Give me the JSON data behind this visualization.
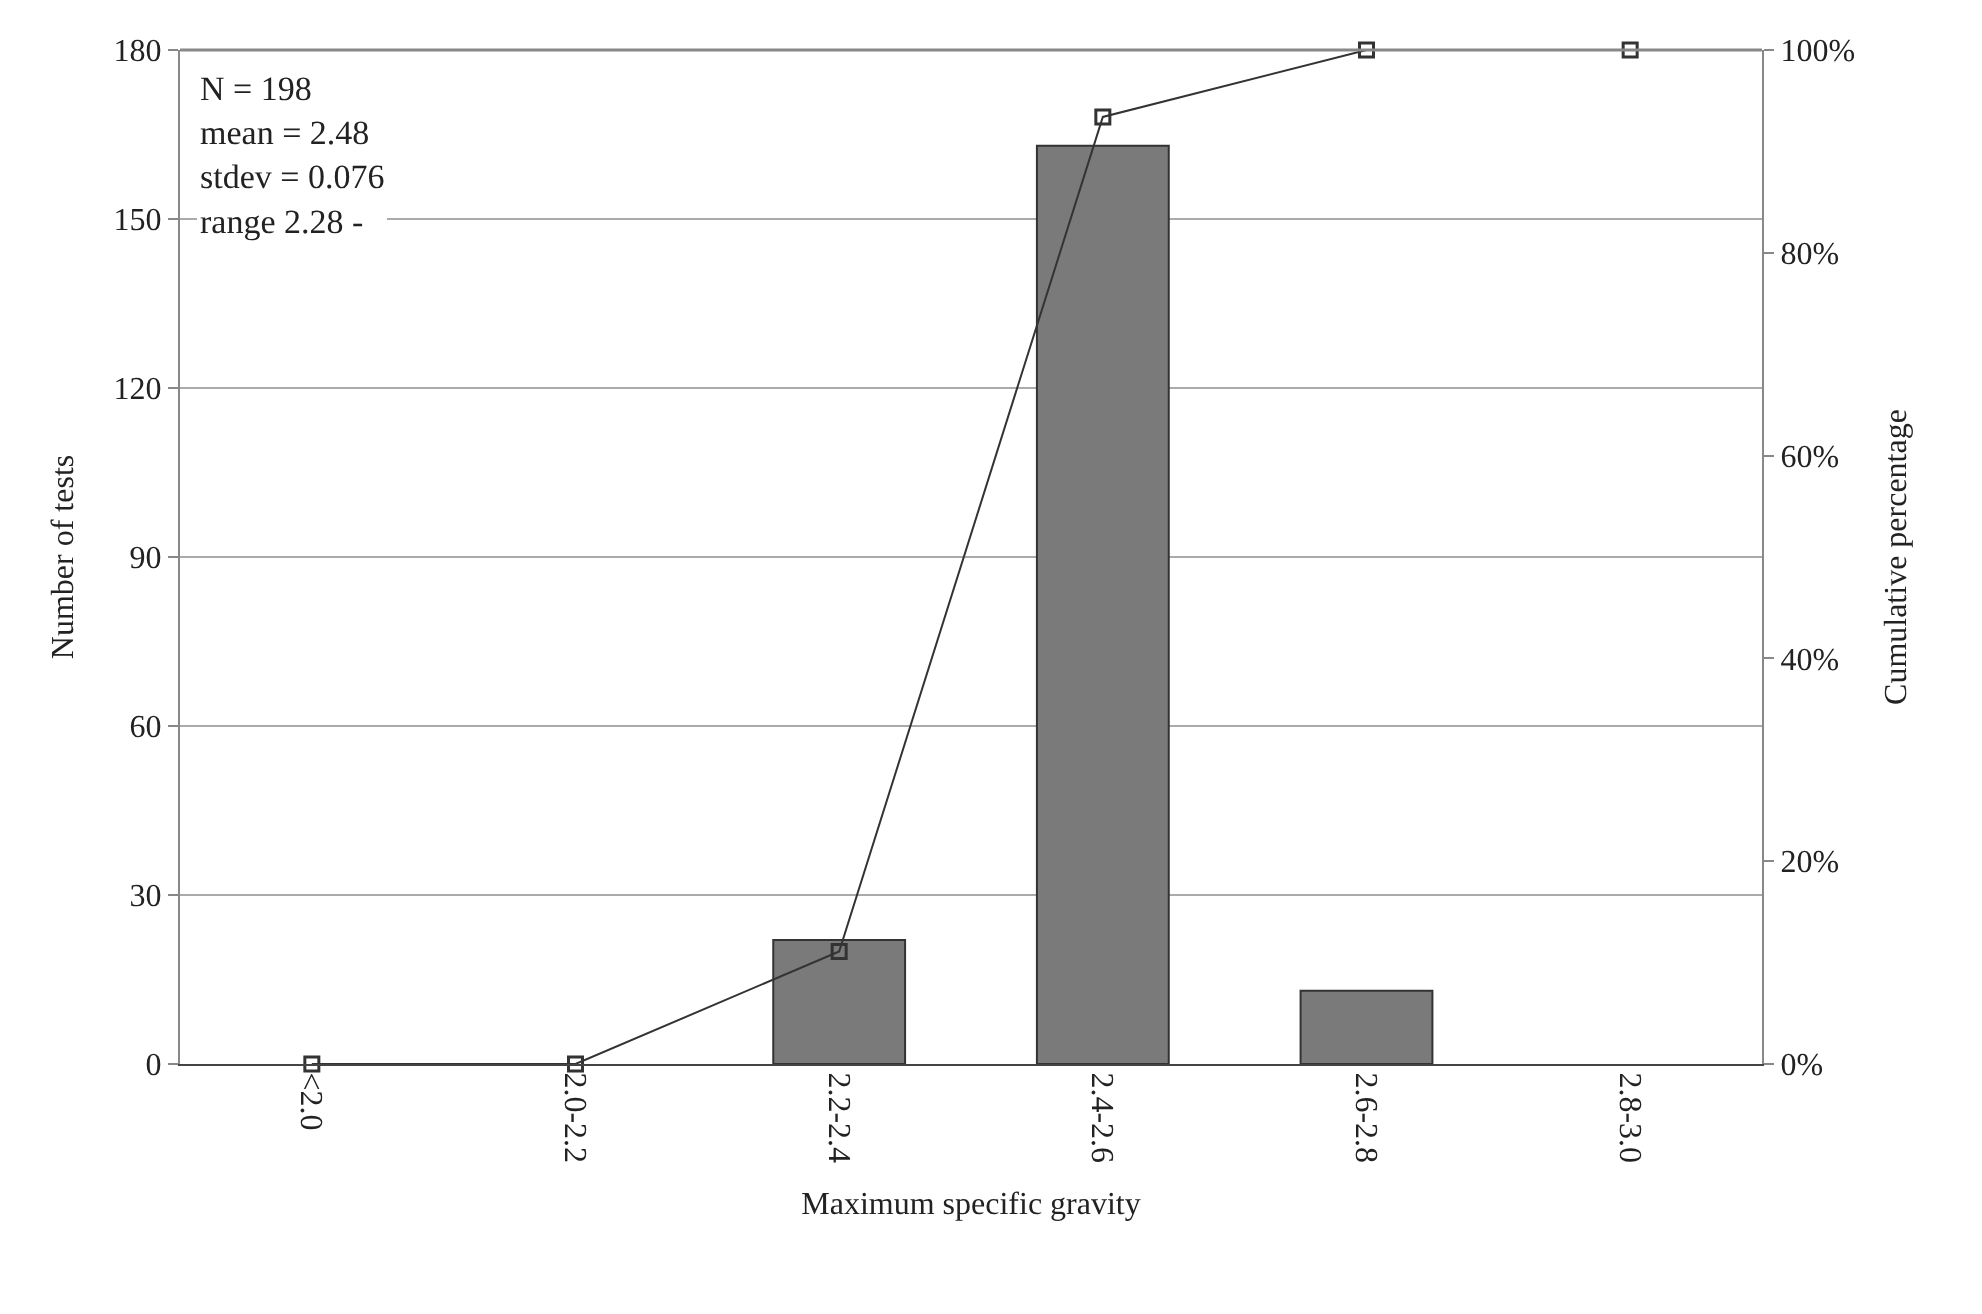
{
  "chart_data": {
    "type": "bar",
    "xlabel": "Maximum specific gravity",
    "ylabel": "Number of tests",
    "y2label": "Cumulative percentage",
    "categories": [
      "<2.0",
      "2.0-2.2",
      "2.2-2.4",
      "2.4-2.6",
      "2.6-2.8",
      "2.8-3.0"
    ],
    "series": [
      {
        "color": "#7a7a7a",
        "values": [
          0,
          0,
          22,
          163,
          13,
          0
        ]
      },
      {
        "type": "line",
        "axis": "y2",
        "color": "#333333",
        "marker": "square",
        "values": [
          0,
          0,
          11.1,
          93.4,
          100,
          100
        ]
      }
    ],
    "ylim": [
      0,
      180
    ],
    "yticks": [
      0,
      30,
      60,
      90,
      120,
      150,
      180
    ],
    "y2lim": [
      0,
      100
    ],
    "y2ticks": [
      {
        "value": 0,
        "label": "0%"
      },
      {
        "value": 20,
        "label": "20%"
      },
      {
        "value": 40,
        "label": "40%"
      },
      {
        "value": 60,
        "label": "60%"
      },
      {
        "value": 80,
        "label": "80%"
      },
      {
        "value": 100,
        "label": "100%"
      }
    ],
    "grid": "y",
    "annotations": [
      "N = 198\nmean = 2.48\nstdev = 0.076\nrange 2.28 -"
    ]
  }
}
